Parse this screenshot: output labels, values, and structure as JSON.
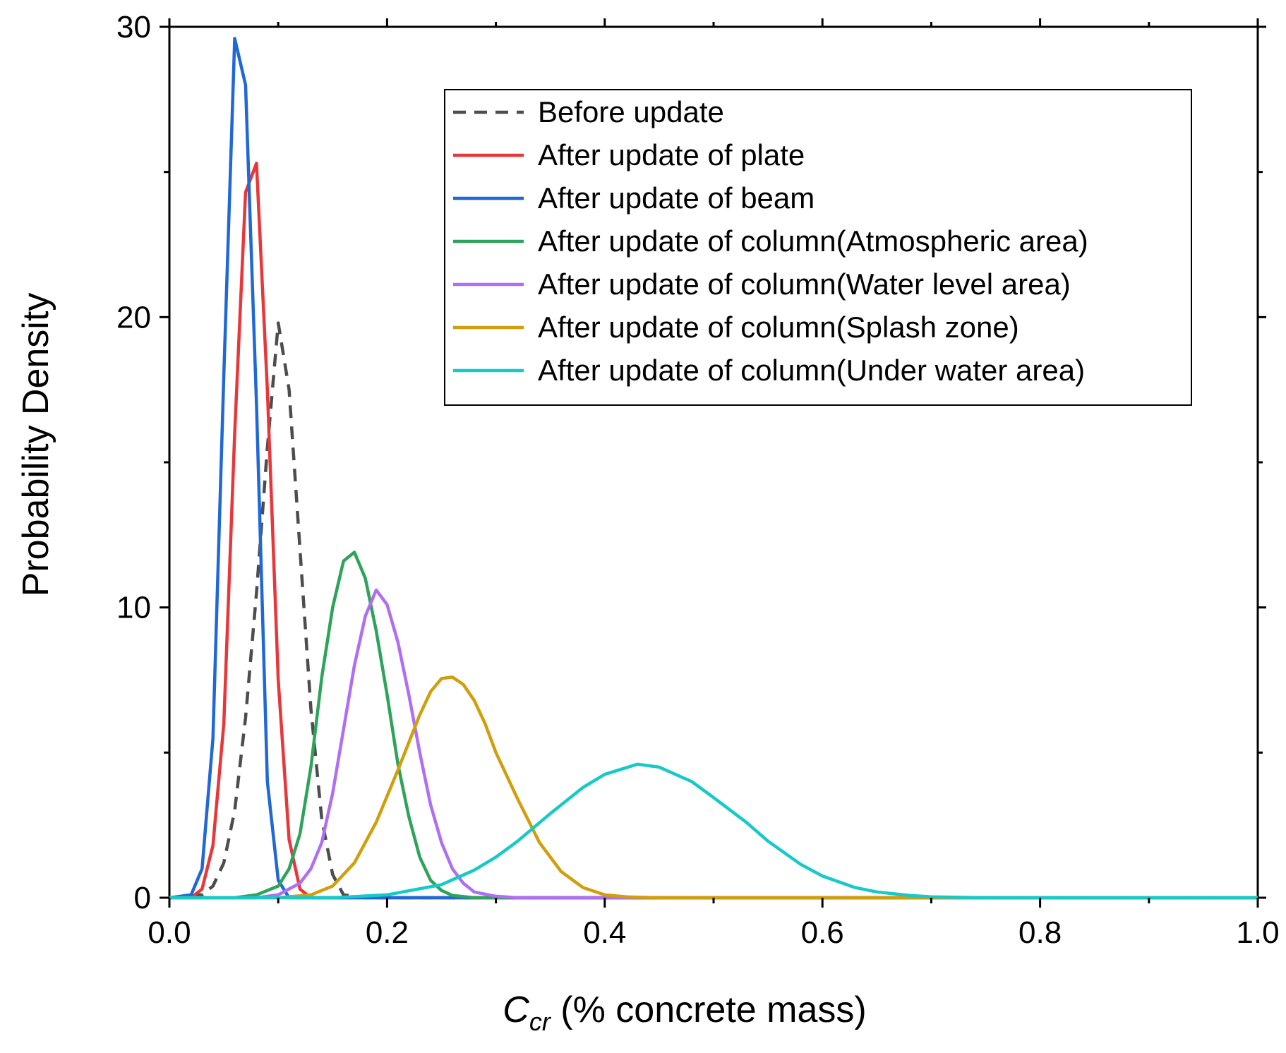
{
  "chart_data": {
    "type": "line",
    "xlabel_main": "C",
    "xlabel_sub": "cr",
    "xlabel_rest": " (% concrete mass)",
    "ylabel": "Probability Density",
    "xlim": [
      0.0,
      1.0
    ],
    "ylim": [
      0,
      30
    ],
    "xticks": [
      0.0,
      0.2,
      0.4,
      0.6,
      0.8,
      1.0
    ],
    "xtick_labels": [
      "0.0",
      "0.2",
      "0.4",
      "0.6",
      "0.8",
      "1.0"
    ],
    "yticks": [
      0,
      10,
      20,
      30
    ],
    "ytick_labels": [
      "0",
      "10",
      "20",
      "30"
    ],
    "legend_position": "top-right",
    "series": [
      {
        "name": "Before update",
        "color": "#4d4d4d",
        "dashed": true,
        "x": [
          0.0,
          0.03,
          0.04,
          0.05,
          0.06,
          0.07,
          0.08,
          0.09,
          0.1,
          0.11,
          0.12,
          0.13,
          0.14,
          0.15,
          0.16,
          0.18,
          1.0
        ],
        "y": [
          0.0,
          0.1,
          0.4,
          1.2,
          3.0,
          6.2,
          10.5,
          15.5,
          19.8,
          17.5,
          12.0,
          6.5,
          2.7,
          0.8,
          0.1,
          0.0,
          0.0
        ]
      },
      {
        "name": "After update of plate",
        "color": "#e8373a",
        "dashed": false,
        "x": [
          0.0,
          0.02,
          0.03,
          0.04,
          0.05,
          0.06,
          0.07,
          0.08,
          0.09,
          0.1,
          0.11,
          0.12,
          0.13,
          0.14,
          1.0
        ],
        "y": [
          0.0,
          0.0,
          0.3,
          1.8,
          6.0,
          16.0,
          24.3,
          25.3,
          17.5,
          7.5,
          2.0,
          0.3,
          0.0,
          0.0,
          0.0
        ]
      },
      {
        "name": "After update of beam",
        "color": "#1f68d6",
        "dashed": false,
        "x": [
          0.0,
          0.02,
          0.03,
          0.04,
          0.05,
          0.06,
          0.07,
          0.08,
          0.09,
          0.1,
          0.11,
          0.12,
          1.0
        ],
        "y": [
          0.0,
          0.1,
          1.0,
          5.5,
          18.0,
          29.6,
          28.0,
          17.0,
          4.0,
          0.6,
          0.0,
          0.0,
          0.0
        ]
      },
      {
        "name": "After update of column(Atmospheric area)",
        "color": "#2ea35a",
        "dashed": false,
        "x": [
          0.0,
          0.06,
          0.08,
          0.1,
          0.11,
          0.12,
          0.13,
          0.14,
          0.15,
          0.16,
          0.17,
          0.18,
          0.19,
          0.2,
          0.21,
          0.22,
          0.23,
          0.24,
          0.25,
          0.26,
          0.28,
          0.3,
          1.0
        ],
        "y": [
          0.0,
          0.0,
          0.1,
          0.4,
          1.0,
          2.2,
          4.5,
          7.6,
          10.0,
          11.6,
          11.9,
          11.0,
          9.2,
          7.0,
          4.6,
          2.8,
          1.4,
          0.6,
          0.25,
          0.08,
          0.0,
          0.0,
          0.0
        ]
      },
      {
        "name": "After update of column(Water level area)",
        "color": "#b06ef2",
        "dashed": false,
        "x": [
          0.0,
          0.08,
          0.1,
          0.12,
          0.13,
          0.14,
          0.15,
          0.16,
          0.17,
          0.18,
          0.19,
          0.2,
          0.21,
          0.22,
          0.23,
          0.24,
          0.25,
          0.26,
          0.27,
          0.28,
          0.3,
          0.32,
          0.34,
          1.0
        ],
        "y": [
          0.0,
          0.0,
          0.1,
          0.5,
          1.0,
          1.9,
          3.6,
          5.8,
          8.0,
          9.7,
          10.6,
          10.1,
          8.8,
          7.0,
          5.0,
          3.2,
          1.9,
          1.0,
          0.5,
          0.2,
          0.05,
          0.0,
          0.0,
          0.0
        ]
      },
      {
        "name": "After update of column(Splash zone)",
        "color": "#d19e0c",
        "dashed": false,
        "x": [
          0.0,
          0.1,
          0.13,
          0.15,
          0.17,
          0.19,
          0.21,
          0.23,
          0.24,
          0.25,
          0.26,
          0.27,
          0.28,
          0.29,
          0.3,
          0.32,
          0.34,
          0.36,
          0.38,
          0.4,
          0.42,
          0.45,
          1.0
        ],
        "y": [
          0.0,
          0.0,
          0.1,
          0.4,
          1.2,
          2.6,
          4.4,
          6.3,
          7.1,
          7.55,
          7.6,
          7.35,
          6.8,
          6.0,
          5.0,
          3.4,
          1.9,
          0.9,
          0.35,
          0.1,
          0.03,
          0.0,
          0.0
        ]
      },
      {
        "name": "After update of column(Under water area)",
        "color": "#17c9c9",
        "dashed": false,
        "x": [
          0.0,
          0.15,
          0.2,
          0.25,
          0.28,
          0.3,
          0.32,
          0.35,
          0.38,
          0.4,
          0.43,
          0.45,
          0.48,
          0.5,
          0.53,
          0.55,
          0.58,
          0.6,
          0.63,
          0.65,
          0.68,
          0.7,
          0.75,
          1.0
        ],
        "y": [
          0.0,
          0.0,
          0.1,
          0.45,
          0.95,
          1.4,
          1.95,
          2.9,
          3.8,
          4.25,
          4.6,
          4.5,
          4.0,
          3.45,
          2.6,
          1.95,
          1.15,
          0.75,
          0.35,
          0.2,
          0.08,
          0.03,
          0.0,
          0.0
        ]
      }
    ]
  }
}
